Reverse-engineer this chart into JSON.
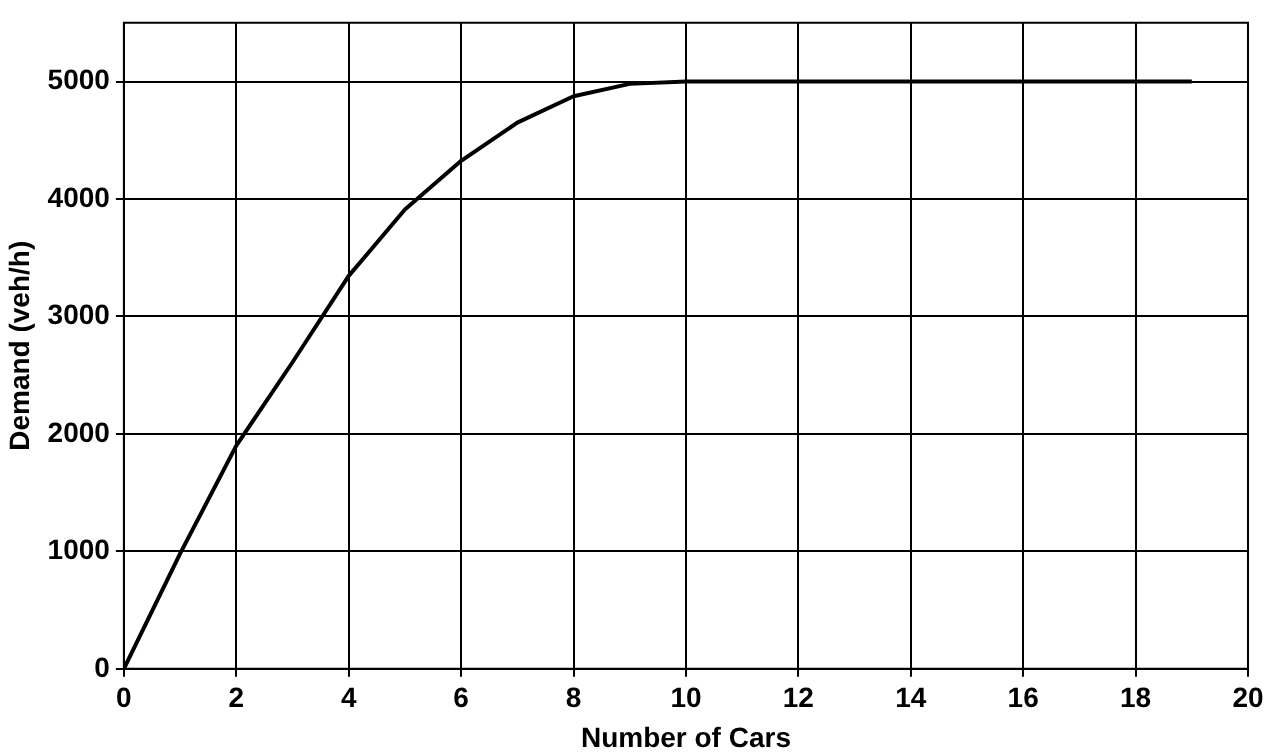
{
  "chart_data": {
    "type": "line",
    "xlabel": "Number of Cars",
    "ylabel": "Demand (veh/h)",
    "x": [
      0,
      1,
      2,
      3,
      4,
      5,
      6,
      7,
      8,
      9,
      10,
      11,
      12,
      13,
      14,
      15,
      16,
      17,
      18,
      19
    ],
    "series": [
      {
        "color": "#000000",
        "values": [
          0,
          980,
          1900,
          2610,
          3345,
          3910,
          4325,
          4650,
          4875,
          4980,
          5000,
          5000,
          5000,
          5000,
          5000,
          5000,
          5000,
          5000,
          5000,
          5000
        ]
      }
    ],
    "xlim": [
      0,
      20
    ],
    "xticks": [
      0,
      2,
      4,
      6,
      8,
      10,
      12,
      14,
      16,
      18,
      20
    ],
    "ylim": [
      0,
      5500
    ],
    "yticks": [
      0,
      1000,
      2000,
      3000,
      4000,
      5000
    ],
    "grid": true,
    "legend": false,
    "marker": "none",
    "line_style": "solid"
  }
}
